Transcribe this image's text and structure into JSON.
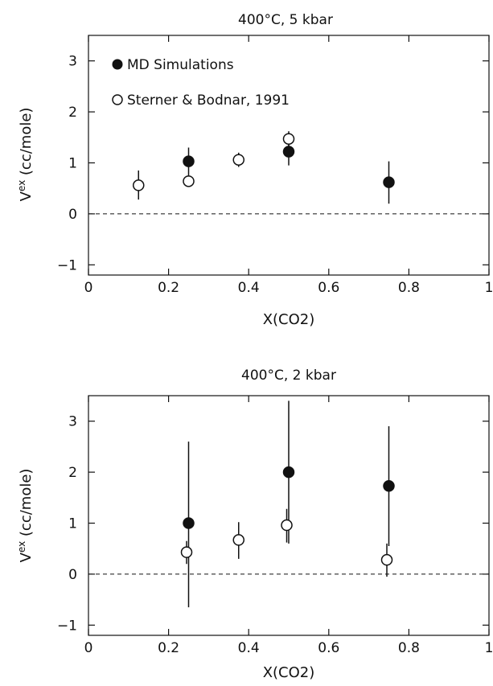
{
  "chart_data": [
    {
      "type": "scatter",
      "title": "400°C, 5 kbar",
      "xlabel": "X(CO2)",
      "ylabel": "Vex (cc/mole)",
      "ylabel_main": "V",
      "ylabel_sup": "ex",
      "ylabel_rest": " (cc/mole)",
      "xlim": [
        0,
        1
      ],
      "ylim": [
        -1.2,
        3.5
      ],
      "xticks": [
        0,
        0.2,
        0.4,
        0.6,
        0.8,
        1
      ],
      "xtick_labels": [
        "0",
        "0.2",
        "0.4",
        "0.6",
        "0.8",
        "1"
      ],
      "yticks": [
        -1,
        0,
        1,
        2,
        3
      ],
      "ytick_labels": [
        "−1",
        "0",
        "1",
        "2",
        "3"
      ],
      "reference_line": {
        "y": 0,
        "style": "dashed"
      },
      "legend_placement": "top-left",
      "series": [
        {
          "name": "MD Simulations",
          "marker": "filled-circle",
          "points": [
            {
              "x": 0.25,
              "y": 1.03,
              "err_low": 0.75,
              "err_high": 1.3
            },
            {
              "x": 0.5,
              "y": 1.22,
              "err_low": 0.95,
              "err_high": 1.45
            },
            {
              "x": 0.75,
              "y": 0.62,
              "err_low": 0.2,
              "err_high": 1.03
            }
          ]
        },
        {
          "name": "Sterner & Bodnar, 1991",
          "marker": "open-circle",
          "points": [
            {
              "x": 0.125,
              "y": 0.56,
              "err_low": 0.28,
              "err_high": 0.85
            },
            {
              "x": 0.25,
              "y": 0.64,
              "err_low": 0.64,
              "err_high": 0.64
            },
            {
              "x": 0.375,
              "y": 1.06,
              "err_low": 0.92,
              "err_high": 1.2
            },
            {
              "x": 0.5,
              "y": 1.47,
              "err_low": 1.3,
              "err_high": 1.62
            }
          ]
        }
      ]
    },
    {
      "type": "scatter",
      "title": "400°C, 2 kbar",
      "xlabel": "X(CO2)",
      "ylabel": "Vex (cc/mole)",
      "ylabel_main": "V",
      "ylabel_sup": "ex",
      "ylabel_rest": " (cc/mole)",
      "xlim": [
        0,
        1
      ],
      "ylim": [
        -1.2,
        3.5
      ],
      "xticks": [
        0,
        0.2,
        0.4,
        0.6,
        0.8,
        1
      ],
      "xtick_labels": [
        "0",
        "0.2",
        "0.4",
        "0.6",
        "0.8",
        "1"
      ],
      "yticks": [
        -1,
        0,
        1,
        2,
        3
      ],
      "ytick_labels": [
        "−1",
        "0",
        "1",
        "2",
        "3"
      ],
      "reference_line": {
        "y": 0,
        "style": "dashed"
      },
      "series": [
        {
          "name": "MD Simulations",
          "marker": "filled-circle",
          "points": [
            {
              "x": 0.25,
              "y": 1.0,
              "err_low": -0.65,
              "err_high": 2.6
            },
            {
              "x": 0.5,
              "y": 2.0,
              "err_low": 0.6,
              "err_high": 3.4
            },
            {
              "x": 0.75,
              "y": 1.73,
              "err_low": 0.55,
              "err_high": 2.9
            }
          ]
        },
        {
          "name": "Sterner & Bodnar, 1991",
          "marker": "open-circle",
          "points": [
            {
              "x": 0.245,
              "y": 0.43,
              "err_low": 0.2,
              "err_high": 0.65
            },
            {
              "x": 0.375,
              "y": 0.67,
              "err_low": 0.3,
              "err_high": 1.02
            },
            {
              "x": 0.495,
              "y": 0.96,
              "err_low": 0.62,
              "err_high": 1.28
            },
            {
              "x": 0.745,
              "y": 0.28,
              "err_low": -0.05,
              "err_high": 0.6
            }
          ]
        }
      ]
    }
  ]
}
